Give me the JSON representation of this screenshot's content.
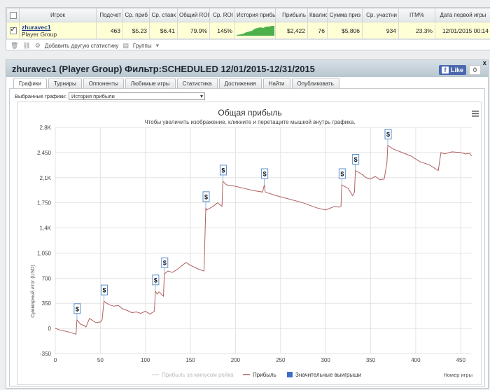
{
  "stats_table": {
    "headers": [
      "Игрок",
      "Подсчет",
      "Ср. приб",
      "Ср. ставк",
      "Общий ROI",
      "Ср. ROI",
      "История прибы",
      "Прибыль",
      "Квалис",
      "Сумма приз",
      "Ср. участни",
      "ITM%",
      "Дата первой игры"
    ],
    "row": {
      "player_name": "zhuravec1",
      "player_group": "Player Group",
      "count": "463",
      "avg_profit": "$5.23",
      "avg_stake": "$6.41",
      "total_roi": "79.9%",
      "avg_roi": "145%",
      "profit": "$2,422",
      "qual": "76",
      "prize_sum": "$5,806",
      "avg_entrants": "934",
      "itm": "23.3%",
      "first_game_date": "12/01/2015 00:14"
    },
    "toolbar": {
      "add_stats": "Добавить другую статистику",
      "groups": "Группы"
    }
  },
  "panel": {
    "title": "zhuravec1 (Player Group) Фильтр:SCHEDULED 12/01/2015-12/31/2015",
    "close": "x",
    "fb_like": "Like",
    "fb_count": "0",
    "tabs": [
      "Графики",
      "Турниры",
      "Оппоненты",
      "Любимые игры",
      "Статистика",
      "Достижения",
      "Найти",
      "Опубликовать"
    ],
    "active_tab": 0,
    "graph_select_label": "Выбранные графики:",
    "graph_select_value": "История прибыли"
  },
  "chart_data": {
    "type": "line",
    "title": "Общая прибыль",
    "subtitle": "Чтобы увеличить изображение, кликните и перетащите мышкой внутрь графика.",
    "xlabel": "Номер игры",
    "ylabel": "Суммарный итог (USD)",
    "xlim": [
      0,
      463
    ],
    "ylim": [
      -350,
      2800
    ],
    "x_ticks": [
      "0",
      "50",
      "100",
      "150",
      "200",
      "250",
      "300",
      "350",
      "400",
      "450"
    ],
    "y_ticks": [
      "-350",
      "0",
      "350",
      "700",
      "1,050",
      "1,4K",
      "1,750",
      "2,1K",
      "2,450",
      "2.8K"
    ],
    "grid": true,
    "legend_position": "bottom",
    "legend": [
      "Прибыль за минусом рейка",
      "Прибыль",
      "Значительные выигрыши"
    ],
    "series": [
      {
        "name": "Прибыль",
        "color": "#b06060",
        "x": [
          0,
          5,
          12,
          18,
          23,
          24,
          28,
          32,
          34,
          38,
          45,
          50,
          52,
          54,
          56,
          60,
          65,
          70,
          75,
          80,
          85,
          90,
          95,
          100,
          105,
          110,
          111,
          113,
          115,
          120,
          121,
          125,
          130,
          135,
          140,
          145,
          150,
          155,
          160,
          165,
          167,
          168,
          175,
          180,
          185,
          186,
          190,
          200,
          210,
          220,
          230,
          232,
          233,
          245,
          260,
          275,
          290,
          300,
          310,
          315,
          317,
          318,
          325,
          330,
          332,
          333,
          340,
          345,
          350,
          355,
          360,
          365,
          368,
          369,
          375,
          385,
          395,
          405,
          415,
          425,
          428,
          432,
          440,
          450,
          455,
          460,
          462
        ],
        "y": [
          0,
          -20,
          -40,
          -60,
          -80,
          120,
          60,
          40,
          20,
          140,
          80,
          90,
          120,
          380,
          360,
          330,
          310,
          320,
          270,
          250,
          220,
          230,
          210,
          240,
          200,
          240,
          520,
          480,
          510,
          450,
          760,
          800,
          780,
          820,
          870,
          920,
          880,
          850,
          820,
          800,
          1680,
          1650,
          1700,
          1750,
          1700,
          2050,
          2000,
          1980,
          1950,
          1920,
          1900,
          2000,
          1900,
          1850,
          1800,
          1750,
          1680,
          1650,
          1700,
          1690,
          1700,
          2000,
          1950,
          1850,
          1900,
          2200,
          2150,
          2100,
          2080,
          2120,
          2070,
          2080,
          2300,
          2550,
          2500,
          2450,
          2400,
          2320,
          2280,
          2200,
          2450,
          2430,
          2460,
          2450,
          2430,
          2440,
          2400
        ]
      }
    ],
    "big_wins": [
      {
        "x": 24,
        "y": 120,
        "label": "$"
      },
      {
        "x": 54,
        "y": 380,
        "label": "$"
      },
      {
        "x": 111,
        "y": 520,
        "label": "$"
      },
      {
        "x": 121,
        "y": 760,
        "label": "$"
      },
      {
        "x": 167,
        "y": 1680,
        "label": "$"
      },
      {
        "x": 186,
        "y": 2050,
        "label": "$"
      },
      {
        "x": 232,
        "y": 2000,
        "label": "$"
      },
      {
        "x": 318,
        "y": 2000,
        "label": "$"
      },
      {
        "x": 333,
        "y": 2200,
        "label": "$"
      },
      {
        "x": 369,
        "y": 2550,
        "label": "$"
      }
    ]
  }
}
